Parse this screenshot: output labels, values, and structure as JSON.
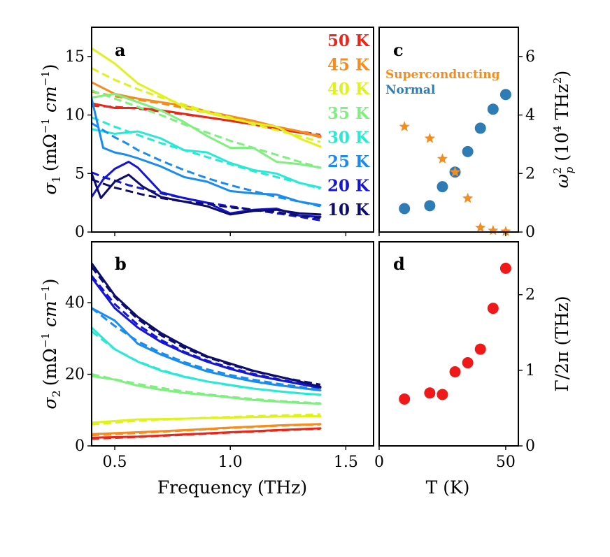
{
  "chart_data": [
    {
      "panel": "a",
      "type": "line",
      "xlabel": "",
      "ylabel": "σ1 (mΩ⁻¹ cm⁻¹)",
      "ylabel_parts": {
        "sym": "σ",
        "sub": "1",
        "unit": "(mΩ",
        "exp1": "−1",
        "cm": " cm",
        "exp2": "−1",
        "close": ")"
      },
      "xlim": [
        0.4,
        1.62
      ],
      "ylim": [
        0,
        17.5
      ],
      "yticks": [
        0,
        5,
        10,
        15
      ],
      "series": [
        {
          "name": "50 K",
          "color": "#e8271a",
          "x": [
            0.4,
            0.5,
            0.6,
            0.7,
            0.8,
            0.9,
            1.0,
            1.1,
            1.2,
            1.3,
            1.39
          ],
          "measured": [
            11.0,
            10.6,
            10.6,
            10.4,
            10.1,
            9.8,
            9.5,
            9.2,
            8.8,
            8.5,
            8.2
          ],
          "fit": [
            10.8,
            10.7,
            10.55,
            10.3,
            10.05,
            9.8,
            9.5,
            9.2,
            8.9,
            8.6,
            8.3
          ]
        },
        {
          "name": "45 K",
          "color": "#f58d1e",
          "x": [
            0.4,
            0.5,
            0.6,
            0.7,
            0.8,
            0.9,
            1.0,
            1.1,
            1.2,
            1.3,
            1.39
          ],
          "measured": [
            12.8,
            11.8,
            11.4,
            11.1,
            10.8,
            10.3,
            9.9,
            9.5,
            9.0,
            8.6,
            8.1
          ],
          "fit": [
            12.0,
            11.6,
            11.3,
            11.0,
            10.6,
            10.2,
            9.8,
            9.4,
            9.0,
            8.6,
            8.2
          ]
        },
        {
          "name": "40 K",
          "color": "#dff21e",
          "x": [
            0.4,
            0.5,
            0.6,
            0.7,
            0.8,
            0.9,
            1.0,
            1.1,
            1.2,
            1.3,
            1.39
          ],
          "measured": [
            15.7,
            14.4,
            12.7,
            11.7,
            10.7,
            10.2,
            9.7,
            9.3,
            9.0,
            8.0,
            7.3
          ],
          "fit": [
            14.0,
            13.0,
            12.2,
            11.5,
            10.9,
            10.3,
            9.8,
            9.2,
            8.7,
            8.2,
            7.7
          ]
        },
        {
          "name": "35 K",
          "color": "#7fef7f",
          "x": [
            0.4,
            0.5,
            0.6,
            0.7,
            0.8,
            0.9,
            1.0,
            1.1,
            1.2,
            1.3,
            1.39
          ],
          "measured": [
            11.5,
            11.8,
            11.1,
            10.4,
            9.4,
            8.2,
            7.2,
            7.2,
            6.0,
            5.8,
            5.5
          ],
          "fit": [
            12.1,
            11.4,
            10.7,
            10.0,
            9.2,
            8.5,
            7.8,
            7.2,
            6.6,
            6.0,
            5.5
          ]
        },
        {
          "name": "30 K",
          "color": "#27e9d6",
          "x": [
            0.4,
            0.5,
            0.6,
            0.7,
            0.8,
            0.9,
            1.0,
            1.1,
            1.2,
            1.3,
            1.39
          ],
          "measured": [
            8.8,
            8.4,
            8.6,
            8.0,
            7.0,
            6.8,
            5.9,
            5.3,
            5.0,
            4.2,
            3.8
          ],
          "fit": [
            9.8,
            9.0,
            8.3,
            7.6,
            7.0,
            6.4,
            5.8,
            5.2,
            4.7,
            4.2,
            3.7
          ]
        },
        {
          "name": "25 K",
          "color": "#1a8cf0",
          "x": [
            0.4,
            0.45,
            0.5,
            0.55,
            0.6,
            0.7,
            0.8,
            0.9,
            1.0,
            1.1,
            1.2,
            1.3,
            1.39
          ],
          "measured": [
            11.4,
            7.2,
            6.8,
            6.6,
            6.3,
            5.6,
            4.7,
            4.3,
            3.5,
            3.3,
            3.2,
            2.6,
            2.3
          ],
          "fit": [
            9.3,
            8.7,
            8.1,
            7.6,
            7.0,
            6.1,
            5.3,
            4.6,
            4.0,
            3.5,
            3.0,
            2.6,
            2.2
          ]
        },
        {
          "name": "20 K",
          "color": "#1515d6",
          "x": [
            0.4,
            0.45,
            0.5,
            0.56,
            0.6,
            0.7,
            0.8,
            0.9,
            1.0,
            1.1,
            1.2,
            1.3,
            1.39
          ],
          "measured": [
            3.0,
            4.5,
            5.4,
            6.0,
            5.5,
            3.4,
            2.9,
            2.5,
            1.6,
            1.9,
            2.0,
            1.4,
            1.3
          ],
          "fit": [
            5.1,
            4.7,
            4.4,
            4.0,
            3.8,
            3.3,
            2.9,
            2.5,
            2.2,
            1.9,
            1.6,
            1.3,
            1.0
          ]
        },
        {
          "name": "10 K",
          "color": "#0d0d6e",
          "x": [
            0.4,
            0.44,
            0.5,
            0.56,
            0.62,
            0.7,
            0.8,
            0.9,
            1.0,
            1.1,
            1.2,
            1.3,
            1.39
          ],
          "measured": [
            5.0,
            2.9,
            4.3,
            4.9,
            3.9,
            3.0,
            2.6,
            2.2,
            1.5,
            1.8,
            1.9,
            1.6,
            1.5
          ],
          "fit": [
            4.5,
            4.2,
            3.8,
            3.5,
            3.2,
            2.9,
            2.6,
            2.4,
            2.1,
            1.9,
            1.7,
            1.4,
            1.2
          ]
        }
      ]
    },
    {
      "panel": "b",
      "type": "line",
      "xlabel": "Frequency (THz)",
      "ylabel": "σ2 (mΩ⁻¹ cm⁻¹)",
      "ylabel_parts": {
        "sym": "σ",
        "sub": "2",
        "unit": "(mΩ",
        "exp1": "−1",
        "cm": " cm",
        "exp2": "−1",
        "close": ")"
      },
      "xlim": [
        0.4,
        1.62
      ],
      "ylim": [
        0,
        57
      ],
      "xticks": [
        0.5,
        1.0,
        1.5
      ],
      "xticklabels": [
        "0.5",
        "1.0",
        "1.5"
      ],
      "yticks": [
        0,
        20,
        40
      ],
      "series": [
        {
          "name": "50 K",
          "color": "#e8271a",
          "x": [
            0.4,
            0.6,
            0.8,
            1.0,
            1.2,
            1.39
          ],
          "measured": [
            2.3,
            2.6,
            3.2,
            3.8,
            4.4,
            4.9
          ],
          "fit": [
            2.0,
            2.5,
            3.1,
            3.7,
            4.3,
            4.8
          ]
        },
        {
          "name": "45 K",
          "color": "#f58d1e",
          "x": [
            0.4,
            0.6,
            0.8,
            1.0,
            1.2,
            1.39
          ],
          "measured": [
            3.3,
            3.8,
            4.4,
            5.1,
            5.7,
            6.1
          ],
          "fit": [
            3.0,
            3.6,
            4.3,
            5.0,
            5.6,
            6.0
          ]
        },
        {
          "name": "40 K",
          "color": "#dff21e",
          "x": [
            0.4,
            0.6,
            0.8,
            1.0,
            1.2,
            1.39
          ],
          "measured": [
            6.5,
            7.4,
            7.6,
            7.9,
            8.2,
            8.3
          ],
          "fit": [
            6.0,
            7.0,
            7.6,
            8.1,
            8.5,
            8.8
          ]
        },
        {
          "name": "35 K",
          "color": "#7fef7f",
          "x": [
            0.4,
            0.5,
            0.6,
            0.7,
            0.8,
            0.9,
            1.0,
            1.1,
            1.2,
            1.3,
            1.39
          ],
          "measured": [
            19.5,
            18.5,
            16.8,
            15.7,
            14.8,
            14.2,
            13.5,
            12.8,
            12.4,
            12.0,
            11.8
          ],
          "fit": [
            20.0,
            18.6,
            17.3,
            16.2,
            15.2,
            14.4,
            13.7,
            13.1,
            12.6,
            12.2,
            11.9
          ]
        },
        {
          "name": "30 K",
          "color": "#27e9d6",
          "x": [
            0.4,
            0.5,
            0.6,
            0.7,
            0.8,
            0.9,
            1.0,
            1.1,
            1.2,
            1.3,
            1.39
          ],
          "measured": [
            33.0,
            27.0,
            23.5,
            21.0,
            19.3,
            18.0,
            17.0,
            16.0,
            15.3,
            14.7,
            14.3
          ],
          "fit": [
            32.0,
            27.0,
            23.6,
            21.2,
            19.4,
            18.0,
            16.9,
            16.0,
            15.3,
            14.7,
            14.2
          ]
        },
        {
          "name": "25 K",
          "color": "#1a8cf0",
          "x": [
            0.4,
            0.5,
            0.6,
            0.7,
            0.8,
            0.9,
            1.0,
            1.1,
            1.2,
            1.3,
            1.39
          ],
          "measured": [
            38.5,
            35.0,
            28.5,
            25.5,
            23.0,
            20.8,
            19.3,
            18.0,
            17.0,
            16.2,
            15.5
          ],
          "fit": [
            38.5,
            33.5,
            29.2,
            26.0,
            23.4,
            21.4,
            19.8,
            18.5,
            17.4,
            16.5,
            15.8
          ]
        },
        {
          "name": "20 K",
          "color": "#1515d6",
          "x": [
            0.4,
            0.5,
            0.6,
            0.7,
            0.8,
            0.9,
            1.0,
            1.1,
            1.2,
            1.3,
            1.39
          ],
          "measured": [
            47.0,
            38.5,
            33.0,
            29.0,
            26.0,
            23.5,
            21.5,
            19.8,
            18.5,
            17.3,
            16.2
          ],
          "fit": [
            47.5,
            39.6,
            33.8,
            29.6,
            26.3,
            23.8,
            21.8,
            20.1,
            18.7,
            17.5,
            16.5
          ]
        },
        {
          "name": "10 K",
          "color": "#0d0d6e",
          "x": [
            0.4,
            0.5,
            0.6,
            0.7,
            0.8,
            0.9,
            1.0,
            1.1,
            1.2,
            1.3,
            1.39
          ],
          "measured": [
            51.0,
            42.0,
            36.0,
            31.5,
            28.0,
            25.0,
            23.0,
            21.0,
            19.5,
            18.0,
            16.5
          ],
          "fit": [
            50.0,
            41.6,
            35.4,
            30.9,
            27.4,
            24.8,
            22.7,
            20.9,
            19.4,
            18.2,
            17.1
          ]
        }
      ]
    },
    {
      "panel": "c",
      "type": "scatter",
      "ylabel": "ω_p² (10⁴ THz²)",
      "ylabel_parts": {
        "sym": "ω",
        "sub": "p",
        "sup": "2",
        "pre": "(10",
        "pow": "4",
        "thz": " THz",
        "pow2": "2",
        "close": ")"
      },
      "xlim": [
        0,
        55
      ],
      "ylim": [
        0,
        7.0
      ],
      "yticks": [
        0,
        2,
        4,
        6
      ],
      "series": [
        {
          "name": "Superconducting",
          "color": "#f58d1e",
          "marker": "star",
          "x": [
            10,
            20,
            25,
            30,
            35,
            40,
            45,
            50
          ],
          "y": [
            3.6,
            3.2,
            2.5,
            2.05,
            1.15,
            0.15,
            0.05,
            0.02
          ]
        },
        {
          "name": "Normal",
          "color": "#2e7cb6",
          "marker": "circle",
          "x": [
            10,
            20,
            25,
            30,
            35,
            40,
            45,
            50
          ],
          "y": [
            0.8,
            0.9,
            1.55,
            2.05,
            2.75,
            3.55,
            4.2,
            4.7
          ]
        }
      ]
    },
    {
      "panel": "d",
      "type": "scatter",
      "xlabel": "T (K)",
      "ylabel": "Γ/2π (THz)",
      "xlim": [
        0,
        55
      ],
      "ylim": [
        0,
        2.7
      ],
      "xticks": [
        0,
        50
      ],
      "xticklabels": [
        "0",
        "50"
      ],
      "yticks": [
        0,
        1,
        2
      ],
      "series": [
        {
          "name": "Γ",
          "color": "#f01818",
          "marker": "circle",
          "x": [
            10,
            20,
            25,
            30,
            35,
            40,
            45,
            50
          ],
          "y": [
            0.62,
            0.7,
            0.68,
            0.98,
            1.1,
            1.28,
            1.82,
            2.35
          ]
        }
      ]
    }
  ],
  "legend": {
    "temperatures": [
      {
        "label": "50 K",
        "color": "#e8271a"
      },
      {
        "label": "45 K",
        "color": "#f58d1e"
      },
      {
        "label": "40 K",
        "color": "#dff21e"
      },
      {
        "label": "35 K",
        "color": "#7fef7f"
      },
      {
        "label": "30 K",
        "color": "#27e9d6"
      },
      {
        "label": "25 K",
        "color": "#1a8cf0"
      },
      {
        "label": "20 K",
        "color": "#1515d6"
      },
      {
        "label": "10 K",
        "color": "#0d0d6e"
      }
    ],
    "states": [
      {
        "label": "Superconducting",
        "color": "#f58d1e"
      },
      {
        "label": "Normal",
        "color": "#2e7cb6"
      }
    ]
  },
  "labels": {
    "panel_a": "a",
    "panel_b": "b",
    "panel_c": "c",
    "panel_d": "d",
    "gamma_label": "Γ/2π (THz)"
  }
}
